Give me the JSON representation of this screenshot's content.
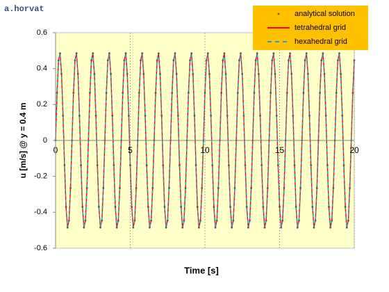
{
  "chart_data": {
    "type": "line",
    "annotation": "a.horvat",
    "xlabel": "Time [s]",
    "ylabel": "u [m/s]   @ y = 0.4 m",
    "xlim": [
      0,
      20
    ],
    "ylim": [
      -0.6,
      0.6
    ],
    "xticks": [
      0,
      5,
      10,
      15,
      20
    ],
    "yticks": [
      -0.6,
      -0.4,
      -0.2,
      0,
      0.2,
      0.4,
      0.6
    ],
    "grid": "x",
    "legend": "top-right",
    "x": [
      0,
      0.1,
      0.2,
      0.3,
      0.4,
      0.5,
      0.6,
      0.7,
      0.8,
      0.9,
      1,
      1.1,
      1.2,
      1.3,
      1.4,
      1.5,
      1.6,
      1.7,
      1.8,
      1.9,
      2,
      2.1,
      2.2,
      2.3,
      2.4,
      2.5,
      2.6,
      2.7,
      2.8,
      2.9,
      3,
      3.1,
      3.2,
      3.3,
      3.4,
      3.5,
      3.6,
      3.7,
      3.8,
      3.9,
      4,
      4.1,
      4.2,
      4.3,
      4.4,
      4.5,
      4.6,
      4.7,
      4.8,
      4.9,
      5,
      5.1,
      5.2,
      5.3,
      5.4,
      5.5,
      5.6,
      5.7,
      5.8,
      5.9,
      6,
      6.1,
      6.2,
      6.3,
      6.4,
      6.5,
      6.6,
      6.7,
      6.8,
      6.9,
      7,
      7.1,
      7.2,
      7.3,
      7.4,
      7.5,
      7.6,
      7.7,
      7.8,
      7.9,
      8,
      8.1,
      8.2,
      8.3,
      8.4,
      8.5,
      8.6,
      8.7,
      8.8,
      8.9,
      9,
      9.1,
      9.2,
      9.3,
      9.4,
      9.5,
      9.6,
      9.7,
      9.8,
      9.9,
      10,
      10.1,
      10.2,
      10.3,
      10.4,
      10.5,
      10.6,
      10.7,
      10.8,
      10.9,
      11,
      11.1,
      11.2,
      11.3,
      11.4,
      11.5,
      11.6,
      11.7,
      11.8,
      11.9,
      12,
      12.1,
      12.2,
      12.3,
      12.4,
      12.5,
      12.6,
      12.7,
      12.8,
      12.9,
      13,
      13.1,
      13.2,
      13.3,
      13.4,
      13.5,
      13.6,
      13.7,
      13.8,
      13.9,
      14,
      14.1,
      14.2,
      14.3,
      14.4,
      14.5,
      14.6,
      14.7,
      14.8,
      14.9,
      15,
      15.1,
      15.2,
      15.3,
      15.4,
      15.5,
      15.6,
      15.7,
      15.8,
      15.9,
      16,
      16.1,
      16.2,
      16.3,
      16.4,
      16.5,
      16.6,
      16.7,
      16.8,
      16.9,
      17,
      17.1,
      17.2,
      17.3,
      17.4,
      17.5,
      17.6,
      17.7,
      17.8,
      17.9,
      18,
      18.1,
      18.2,
      18.3,
      18.4,
      18.5,
      18.6,
      18.7,
      18.8,
      18.9,
      19,
      19.1,
      19.2,
      19.3,
      19.4,
      19.5,
      19.6,
      19.7,
      19.8,
      19.9,
      20
    ],
    "series": [
      {
        "name": "analytical solution",
        "color": "#595959",
        "style": "dots",
        "values": [
          0,
          0.265,
          0.446,
          0.485,
          0.37,
          0.138,
          -0.138,
          -0.37,
          -0.485,
          -0.446,
          -0.265,
          0,
          0.265,
          0.446,
          0.485,
          0.37,
          0.138,
          -0.138,
          -0.37,
          -0.485,
          -0.446,
          -0.265,
          0,
          0.265,
          0.446,
          0.485,
          0.37,
          0.138,
          -0.138,
          -0.37,
          -0.485,
          -0.446,
          -0.265,
          0,
          0.265,
          0.446,
          0.485,
          0.37,
          0.138,
          -0.138,
          -0.37,
          -0.485,
          -0.446,
          -0.265,
          0,
          0.265,
          0.446,
          0.485,
          0.37,
          0.138,
          -0.138,
          -0.37,
          -0.485,
          -0.446,
          -0.265,
          0,
          0.265,
          0.446,
          0.485,
          0.37,
          0.138,
          -0.138,
          -0.37,
          -0.485,
          -0.446,
          -0.265,
          0,
          0.265,
          0.446,
          0.485,
          0.37,
          0.138,
          -0.138,
          -0.37,
          -0.485,
          -0.446,
          -0.265,
          0,
          0.265,
          0.446,
          0.485,
          0.37,
          0.138,
          -0.138,
          -0.37,
          -0.485,
          -0.446,
          -0.265,
          0,
          0.265,
          0.446,
          0.485,
          0.37,
          0.138,
          -0.138,
          -0.37,
          -0.485,
          -0.446,
          -0.265,
          0,
          0.265,
          0.446,
          0.485,
          0.37,
          0.138,
          -0.138,
          -0.37,
          -0.485,
          -0.446,
          -0.265,
          0,
          0.265,
          0.446,
          0.485,
          0.37,
          0.138,
          -0.138,
          -0.37,
          -0.485,
          -0.446,
          -0.265,
          0,
          0.265,
          0.446,
          0.485,
          0.37,
          0.138,
          -0.138,
          -0.37,
          -0.485,
          -0.446,
          -0.265,
          0,
          0.265,
          0.446,
          0.485,
          0.37,
          0.138,
          -0.138,
          -0.37,
          -0.485,
          -0.446,
          -0.265,
          0,
          0.265,
          0.446,
          0.485,
          0.37,
          0.138,
          -0.138,
          -0.37,
          -0.485,
          -0.446,
          -0.265,
          0,
          0.265,
          0.446,
          0.485,
          0.37,
          0.138,
          -0.138,
          -0.37,
          -0.485,
          -0.446,
          -0.265,
          0,
          0.265,
          0.446,
          0.485,
          0.37,
          0.138,
          -0.138,
          -0.37,
          -0.485,
          -0.446,
          -0.265,
          0,
          0.265,
          0.446,
          0.485,
          0.37,
          0.138,
          -0.138,
          -0.37,
          -0.485,
          -0.446,
          -0.265,
          0,
          0.265,
          0.446,
          0.485,
          0.37,
          0.138,
          -0.138,
          -0.37,
          -0.485,
          -0.446,
          -0.265,
          0,
          0.265,
          0.446
        ]
      },
      {
        "name": "tetrahedral grid",
        "color": "#ff0000",
        "style": "solid",
        "values": [
          0,
          0.265,
          0.446,
          0.485,
          0.37,
          0.138,
          -0.138,
          -0.37,
          -0.485,
          -0.446,
          -0.265,
          0,
          0.265,
          0.446,
          0.485,
          0.37,
          0.138,
          -0.138,
          -0.37,
          -0.485,
          -0.446,
          -0.265,
          0,
          0.265,
          0.446,
          0.485,
          0.37,
          0.138,
          -0.138,
          -0.37,
          -0.485,
          -0.446,
          -0.265,
          0,
          0.265,
          0.446,
          0.485,
          0.37,
          0.138,
          -0.138,
          -0.37,
          -0.485,
          -0.446,
          -0.265,
          0,
          0.265,
          0.446,
          0.485,
          0.37,
          0.138,
          -0.138,
          -0.37,
          -0.485,
          -0.446,
          -0.265,
          0,
          0.265,
          0.446,
          0.485,
          0.37,
          0.138,
          -0.138,
          -0.37,
          -0.485,
          -0.446,
          -0.265,
          0,
          0.265,
          0.446,
          0.485,
          0.37,
          0.138,
          -0.138,
          -0.37,
          -0.485,
          -0.446,
          -0.265,
          0,
          0.265,
          0.446,
          0.485,
          0.37,
          0.138,
          -0.138,
          -0.37,
          -0.485,
          -0.446,
          -0.265,
          0,
          0.265,
          0.446,
          0.485,
          0.37,
          0.138,
          -0.138,
          -0.37,
          -0.485,
          -0.446,
          -0.265,
          0,
          0.265,
          0.446,
          0.485,
          0.37,
          0.138,
          -0.138,
          -0.37,
          -0.485,
          -0.446,
          -0.265,
          0,
          0.265,
          0.446,
          0.485,
          0.37,
          0.138,
          -0.138,
          -0.37,
          -0.485,
          -0.446,
          -0.265,
          0,
          0.265,
          0.446,
          0.485,
          0.37,
          0.138,
          -0.138,
          -0.37,
          -0.485,
          -0.446,
          -0.265,
          0,
          0.265,
          0.446,
          0.485,
          0.37,
          0.138,
          -0.138,
          -0.37,
          -0.485,
          -0.446,
          -0.265,
          0,
          0.265,
          0.446,
          0.485,
          0.37,
          0.138,
          -0.138,
          -0.37,
          -0.485,
          -0.446,
          -0.265,
          0,
          0.265,
          0.446,
          0.485,
          0.37,
          0.138,
          -0.138,
          -0.37,
          -0.485,
          -0.446,
          -0.265,
          0,
          0.265,
          0.446,
          0.485,
          0.37,
          0.138,
          -0.138,
          -0.37,
          -0.485,
          -0.446,
          -0.265,
          0,
          0.265,
          0.446,
          0.485,
          0.37,
          0.138,
          -0.138,
          -0.37,
          -0.485,
          -0.446,
          -0.265,
          0,
          0.265,
          0.446,
          0.485,
          0.37,
          0.138,
          -0.138,
          -0.37,
          -0.485,
          -0.446,
          -0.265,
          0,
          0.265,
          0.446
        ]
      },
      {
        "name": "hexahedral grid",
        "color": "#2e9bd6",
        "style": "dashed",
        "values": [
          0,
          0.265,
          0.446,
          0.485,
          0.37,
          0.138,
          -0.138,
          -0.37,
          -0.485,
          -0.446,
          -0.265,
          0,
          0.265,
          0.446,
          0.485,
          0.37,
          0.138,
          -0.138,
          -0.37,
          -0.485,
          -0.446,
          -0.265,
          0,
          0.265,
          0.446,
          0.485,
          0.37,
          0.138,
          -0.138,
          -0.37,
          -0.485,
          -0.446,
          -0.265,
          0,
          0.265,
          0.446,
          0.485,
          0.37,
          0.138,
          -0.138,
          -0.37,
          -0.485,
          -0.446,
          -0.265,
          0,
          0.265,
          0.446,
          0.485,
          0.37,
          0.138,
          -0.138,
          -0.37,
          -0.485,
          -0.446,
          -0.265,
          0,
          0.265,
          0.446,
          0.485,
          0.37,
          0.138,
          -0.138,
          -0.37,
          -0.485,
          -0.446,
          -0.265,
          0,
          0.265,
          0.446,
          0.485,
          0.37,
          0.138,
          -0.138,
          -0.37,
          -0.485,
          -0.446,
          -0.265,
          0,
          0.265,
          0.446,
          0.485,
          0.37,
          0.138,
          -0.138,
          -0.37,
          -0.485,
          -0.446,
          -0.265,
          0,
          0.265,
          0.446,
          0.485,
          0.37,
          0.138,
          -0.138,
          -0.37,
          -0.485,
          -0.446,
          -0.265,
          0,
          0.265,
          0.446,
          0.485,
          0.37,
          0.138,
          -0.138,
          -0.37,
          -0.485,
          -0.446,
          -0.265,
          0,
          0.265,
          0.446,
          0.485,
          0.37,
          0.138,
          -0.138,
          -0.37,
          -0.485,
          -0.446,
          -0.265,
          0,
          0.265,
          0.446,
          0.485,
          0.37,
          0.138,
          -0.138,
          -0.37,
          -0.485,
          -0.446,
          -0.265,
          0,
          0.265,
          0.446,
          0.485,
          0.37,
          0.138,
          -0.138,
          -0.37,
          -0.485,
          -0.446,
          -0.265,
          0,
          0.265,
          0.446,
          0.485,
          0.37,
          0.138,
          -0.138,
          -0.37,
          -0.485,
          -0.446,
          -0.265,
          0,
          0.265,
          0.446,
          0.485,
          0.37,
          0.138,
          -0.138,
          -0.37,
          -0.485,
          -0.446,
          -0.265,
          0,
          0.265,
          0.446,
          0.485,
          0.37,
          0.138,
          -0.138,
          -0.37,
          -0.485,
          -0.446,
          -0.265,
          0,
          0.265,
          0.446,
          0.485,
          0.37,
          0.138,
          -0.138,
          -0.37,
          -0.485,
          -0.446,
          -0.265,
          0,
          0.265,
          0.446,
          0.485,
          0.37,
          0.138,
          -0.138,
          -0.37,
          -0.485,
          -0.446,
          -0.265,
          0,
          0.265,
          0.446
        ]
      }
    ]
  }
}
